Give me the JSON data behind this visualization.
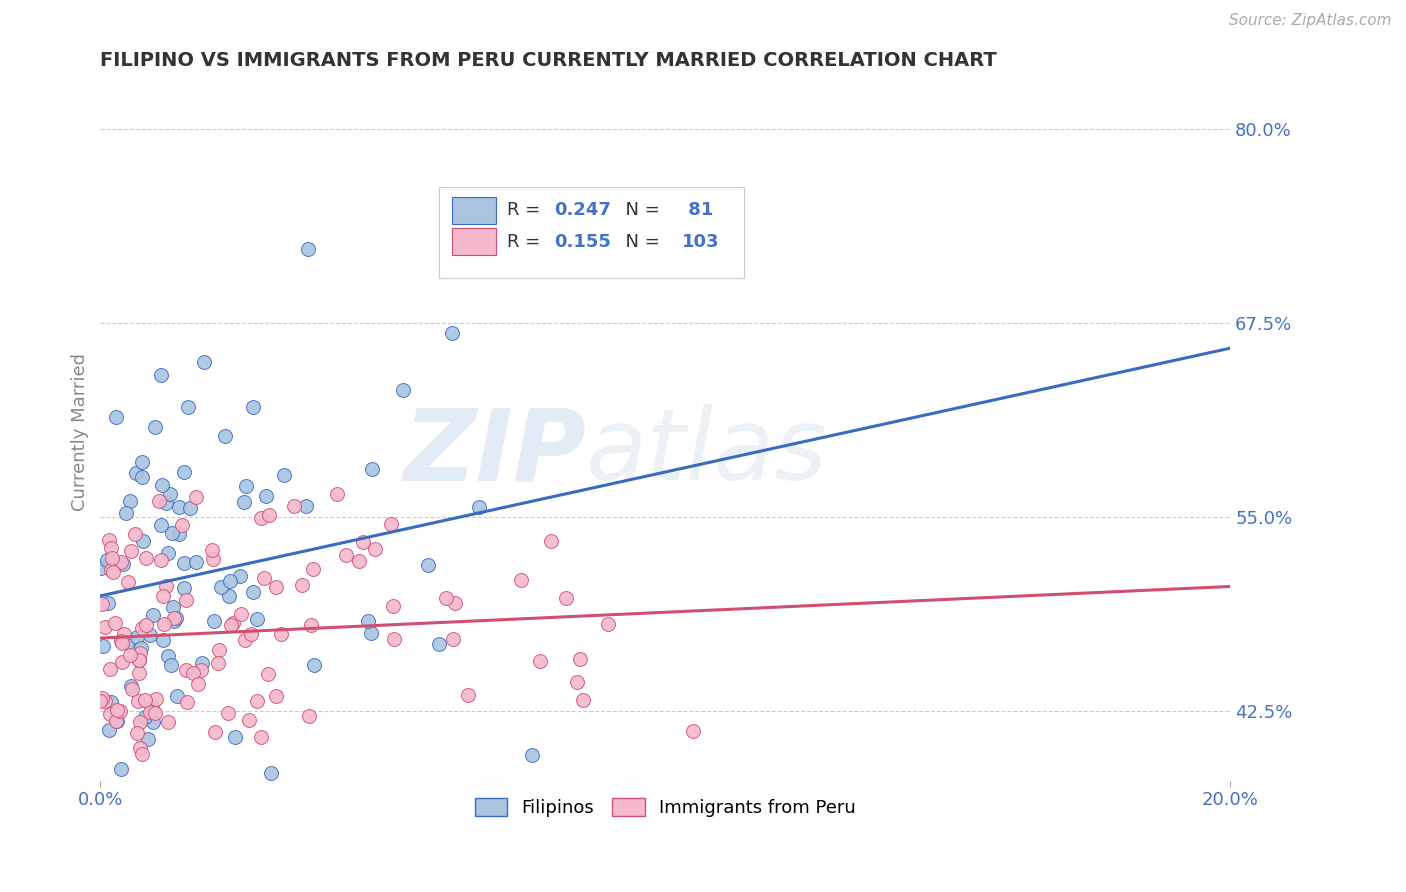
{
  "title": "FILIPINO VS IMMIGRANTS FROM PERU CURRENTLY MARRIED CORRELATION CHART",
  "source": "Source: ZipAtlas.com",
  "ylabel": "Currently Married",
  "xlim": [
    0.0,
    20.0
  ],
  "ylim": [
    38.0,
    83.0
  ],
  "xtick_positions": [
    0.0,
    20.0
  ],
  "xtick_labels": [
    "0.0%",
    "20.0%"
  ],
  "ytick_positions": [
    42.5,
    55.0,
    67.5,
    80.0
  ],
  "ytick_labels": [
    "42.5%",
    "55.0%",
    "67.5%",
    "80.0%"
  ],
  "series1_color": "#aac4e0",
  "series2_color": "#f5b8cc",
  "line1_color": "#3a6bc4",
  "line2_color": "#d05070",
  "R1": 0.247,
  "N1": 81,
  "R2": 0.155,
  "N2": 103,
  "legend_labels": [
    "Filipinos",
    "Immigrants from Peru"
  ],
  "watermark_zip": "ZIP",
  "watermark_atlas": "atlas",
  "background_color": "#ffffff",
  "grid_color": "#cccccc",
  "title_color": "#333333",
  "tick_color": "#4472c4",
  "axis_label_color": "#888888",
  "blue_text_color": "#4472c4"
}
